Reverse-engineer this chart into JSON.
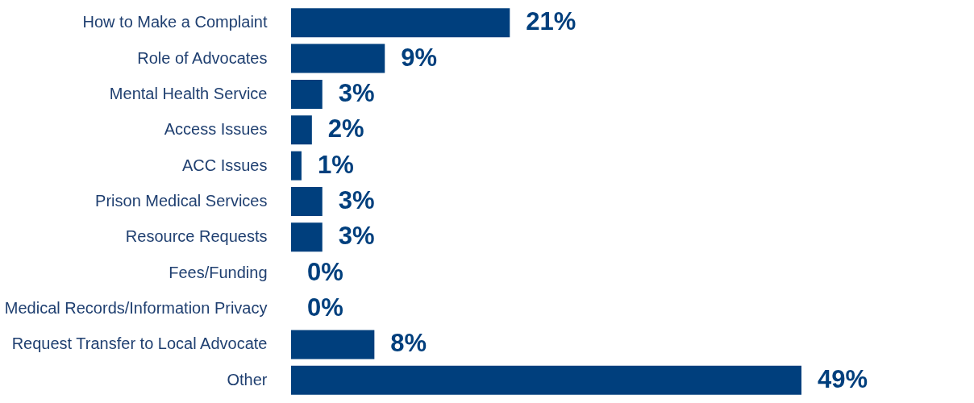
{
  "chart_data": {
    "type": "bar",
    "orientation": "horizontal",
    "categories": [
      "How to Make a Complaint",
      "Role of Advocates",
      "Mental Health Service",
      "Access Issues",
      "ACC Issues",
      "Prison Medical Services",
      "Resource Requests",
      "Fees/Funding",
      "Medical Records/Information Privacy",
      "Request Transfer to Local Advocate",
      "Other"
    ],
    "values": [
      21,
      9,
      3,
      2,
      1,
      3,
      3,
      0,
      0,
      8,
      49
    ],
    "value_labels": [
      "21%",
      "9%",
      "3%",
      "2%",
      "1%",
      "3%",
      "3%",
      "0%",
      "0%",
      "8%",
      "49%"
    ],
    "color": "#003f7d"
  }
}
